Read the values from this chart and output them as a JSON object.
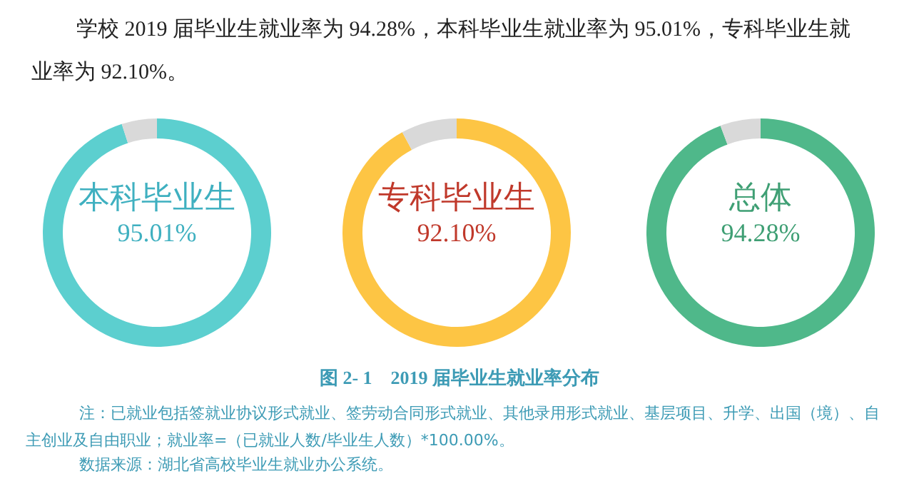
{
  "chart_data": [
    {
      "type": "donut",
      "title": "本科毕业生",
      "categories": [
        null,
        null
      ],
      "values": [
        95.01,
        4.99
      ],
      "colors": [
        "#5ccfcf",
        "#d9d9d9"
      ],
      "value_labels": [
        "95.01%",
        null
      ],
      "annotations": [
        "学校 2019 届毕业生就业率为 94.28%，本科毕业生就业率为 95.01%，专科毕业生就业率为 92.10%。",
        "图 2- 1　2019 届毕业生就业率分布",
        "注：已就业包括签就业协议形式就业、签劳动合同形式就业、其他录用形式就业、基层项目、升学、出国（境）、自主创业及自由职业；就业率=（已就业人数/毕业生人数）*100.00%。",
        "数据来源：湖北省高校毕业生就业办公系统。"
      ]
    },
    {
      "type": "donut",
      "title": "专科毕业生",
      "categories": [
        null,
        null
      ],
      "values": [
        92.1,
        7.9
      ],
      "colors": [
        "#fdc544",
        "#d9d9d9"
      ],
      "value_labels": [
        "92.10%",
        null
      ]
    },
    {
      "type": "donut",
      "title": "总体",
      "categories": [
        null,
        null
      ],
      "values": [
        94.28,
        5.72
      ],
      "colors": [
        "#4fb88a",
        "#d9d9d9"
      ],
      "value_labels": [
        "94.28%",
        null
      ]
    }
  ]
}
